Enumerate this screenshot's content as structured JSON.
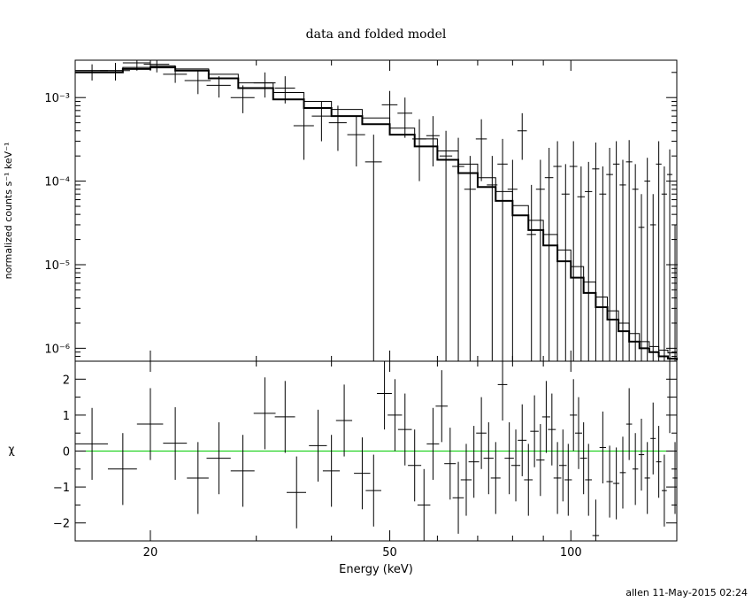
{
  "chart_data": [
    {
      "type": "scatter",
      "panel": "spectrum",
      "title": "data and folded model",
      "xlabel": "",
      "ylabel": "normalized counts s⁻¹ keV⁻¹",
      "xscale": "log",
      "yscale": "log",
      "xlim": [
        15,
        150
      ],
      "ylim": [
        7e-07,
        0.0028
      ],
      "y_tick_labels": [
        "10⁻³",
        "10⁻⁴",
        "10⁻⁵",
        "10⁻⁶"
      ],
      "y_ticks": [
        0.001,
        0.0001,
        1e-05,
        1e-06
      ],
      "series": [
        {
          "kind": "data-crosses",
          "x": [
            16,
            17.5,
            19,
            20.5,
            22,
            24,
            26,
            28.5,
            31,
            33.5,
            36,
            38.5,
            41,
            44,
            47,
            50,
            53,
            56,
            59,
            62,
            65,
            68,
            71,
            74,
            77,
            80,
            83,
            86,
            89,
            92,
            95,
            98,
            101,
            104,
            107,
            110,
            113,
            116,
            119,
            122,
            125,
            128,
            131,
            134,
            137,
            140,
            143,
            146,
            149
          ],
          "xerr": [
            1,
            1,
            1,
            1,
            1,
            1.2,
            1.2,
            1.3,
            1.3,
            1.3,
            1.4,
            1.4,
            1.4,
            1.5,
            1.5,
            1.5,
            1.5,
            1.5,
            1.5,
            1.5,
            1.5,
            1.5,
            1.5,
            1.5,
            1.5,
            1.5,
            1.5,
            1.5,
            1.5,
            1.5,
            1.5,
            1.5,
            1.5,
            1.5,
            1.5,
            1.5,
            1.5,
            1.5,
            1.5,
            1.5,
            1.5,
            1.5,
            1.5,
            1.5,
            1.5,
            1.5,
            1.5,
            1.5,
            1.5
          ],
          "y": [
            0.0021,
            0.0021,
            0.0026,
            0.0025,
            0.0019,
            0.0016,
            0.0014,
            0.001,
            0.0015,
            0.0013,
            0.00046,
            0.0006,
            0.0005,
            0.00036,
            0.00017,
            0.00082,
            0.00065,
            0.00032,
            0.00035,
            0.0002,
            0.00015,
            8e-05,
            0.00032,
            9e-05,
            0.00016,
            8e-05,
            0.0004,
            2.3e-05,
            8e-05,
            0.00011,
            0.00015,
            7e-05,
            0.00015,
            6.5e-05,
            7.5e-05,
            0.00014,
            7e-05,
            0.00012,
            0.00016,
            9e-05,
            0.00017,
            8e-05,
            2.8e-05,
            0.0001,
            3e-05,
            0.00016,
            7e-05,
            0.00012,
            1e-05
          ],
          "ylo": [
            0.0016,
            0.0016,
            0.0021,
            0.002,
            0.0015,
            0.0011,
            0.001,
            0.00065,
            0.001,
            0.00085,
            0.00018,
            0.0003,
            0.00023,
            0.00015,
            5e-07,
            0.00045,
            0.00033,
            0.0001,
            0.00015,
            5e-07,
            5e-07,
            5e-07,
            0.0001,
            5e-07,
            5e-07,
            5e-07,
            0.00018,
            5e-07,
            5e-07,
            5e-07,
            5e-07,
            5e-07,
            5e-07,
            5e-07,
            5e-07,
            5e-07,
            5e-07,
            5e-07,
            5e-07,
            5e-07,
            5e-07,
            5e-07,
            5e-07,
            5e-07,
            5e-07,
            5e-07,
            5e-07,
            5e-07,
            5e-07
          ],
          "yhi": [
            0.0025,
            0.0026,
            0.0028,
            0.0028,
            0.0024,
            0.0021,
            0.0018,
            0.0014,
            0.002,
            0.0018,
            0.00075,
            0.0009,
            0.0008,
            0.0006,
            0.00036,
            0.0012,
            0.001,
            0.00055,
            0.0006,
            0.0004,
            0.00033,
            0.0002,
            0.00055,
            0.0002,
            0.00032,
            0.00018,
            0.00065,
            9e-05,
            0.00018,
            0.00025,
            0.0003,
            0.00016,
            0.0003,
            0.00015,
            0.00017,
            0.00029,
            0.00015,
            0.00025,
            0.0003,
            0.00018,
            0.00031,
            0.00016,
            7e-05,
            0.00019,
            7e-05,
            0.0003,
            0.00015,
            0.00024,
            3e-05
          ]
        },
        {
          "kind": "model-thick",
          "x": [
            15,
            18,
            20,
            22,
            25,
            28,
            32,
            36,
            40,
            45,
            50,
            55,
            60,
            65,
            70,
            75,
            80,
            85,
            90,
            95,
            100,
            105,
            110,
            115,
            120,
            125,
            130,
            135,
            140,
            145,
            150
          ],
          "y": [
            0.002,
            0.0022,
            0.0023,
            0.0021,
            0.0017,
            0.0013,
            0.00095,
            0.00075,
            0.0006,
            0.00048,
            0.00036,
            0.00026,
            0.00018,
            0.000125,
            8.5e-05,
            5.8e-05,
            3.9e-05,
            2.6e-05,
            1.7e-05,
            1.1e-05,
            7e-06,
            4.6e-06,
            3.1e-06,
            2.2e-06,
            1.6e-06,
            1.2e-06,
            1e-06,
            9e-07,
            8e-07,
            7.5e-07,
            7.2e-07
          ]
        },
        {
          "kind": "model-thin",
          "x": [
            15,
            18,
            20,
            22,
            25,
            28,
            32,
            36,
            40,
            45,
            50,
            55,
            60,
            65,
            70,
            75,
            80,
            85,
            90,
            95,
            100,
            105,
            110,
            115,
            120,
            125,
            130,
            135,
            140,
            145,
            150
          ],
          "y": [
            0.0021,
            0.0023,
            0.0024,
            0.0022,
            0.0019,
            0.0015,
            0.00115,
            0.0009,
            0.00072,
            0.00057,
            0.00043,
            0.00032,
            0.00023,
            0.00016,
            0.00011,
            7.5e-05,
            5.1e-05,
            3.4e-05,
            2.3e-05,
            1.5e-05,
            9.5e-06,
            6.2e-06,
            4.1e-06,
            2.8e-06,
            2e-06,
            1.5e-06,
            1.2e-06,
            1.05e-06,
            9.5e-07,
            8.8e-07,
            8.3e-07
          ]
        }
      ]
    },
    {
      "type": "scatter",
      "panel": "residuals",
      "xlabel": "Energy (keV)",
      "ylabel": "χ",
      "xscale": "log",
      "xlim": [
        15,
        150
      ],
      "ylim": [
        -2.5,
        2.5
      ],
      "x_tick_labels": [
        "20",
        "50",
        "100"
      ],
      "x_ticks": [
        20,
        50,
        100
      ],
      "y_tick_labels": [
        "2",
        "1",
        "0",
        "−1",
        "−2"
      ],
      "y_ticks": [
        2,
        1,
        0,
        -1,
        -2
      ],
      "zero_line_color": "#00cc00",
      "series": [
        {
          "kind": "residual-crosses",
          "x": [
            16,
            18,
            20,
            22,
            24,
            26,
            28.5,
            31,
            33.5,
            35,
            38,
            40,
            42,
            45,
            47,
            49,
            51,
            53,
            55,
            57,
            59,
            61,
            63,
            65,
            67,
            69,
            71,
            73,
            75,
            77,
            79,
            81,
            83,
            85,
            87,
            89,
            91,
            93,
            95,
            97,
            99,
            101,
            103,
            105,
            107,
            110,
            113,
            116,
            119,
            122,
            125,
            128,
            131,
            134,
            137,
            140,
            143,
            146,
            149
          ],
          "xerr": [
            1,
            1,
            1,
            1,
            1,
            1.2,
            1.3,
            1.3,
            1.3,
            1.3,
            1.3,
            1.3,
            1.3,
            1.4,
            1.4,
            1.4,
            1.4,
            1.4,
            1.4,
            1.4,
            1.4,
            1.4,
            1.4,
            1.4,
            1.4,
            1.4,
            1.4,
            1.4,
            1.4,
            1.4,
            1.4,
            1.4,
            1.4,
            1.4,
            1.4,
            1.4,
            1.4,
            1.4,
            1.4,
            1.4,
            1.4,
            1.4,
            1.4,
            1.4,
            1.4,
            1.4,
            1.4,
            1.4,
            1.4,
            1.4,
            1.4,
            1.4,
            1.4,
            1.4,
            1.4,
            1.4,
            1.4,
            1.4,
            1.4
          ],
          "y": [
            0.2,
            -0.5,
            0.75,
            0.22,
            -0.75,
            -0.2,
            -0.55,
            1.05,
            0.95,
            -1.15,
            0.15,
            -0.55,
            0.85,
            -0.62,
            -1.1,
            1.6,
            1.0,
            0.6,
            -0.4,
            -1.5,
            0.2,
            1.25,
            -0.35,
            -1.3,
            -0.8,
            -0.3,
            0.5,
            -0.2,
            -0.75,
            1.85,
            -0.2,
            -0.4,
            0.3,
            -0.8,
            0.55,
            -0.25,
            0.95,
            0.6,
            -0.75,
            -0.4,
            -0.8,
            1.0,
            0.5,
            -0.2,
            -0.8,
            -2.35,
            0.1,
            -0.85,
            -0.9,
            -0.6,
            0.75,
            -0.5,
            -0.1,
            -0.75,
            0.35,
            -0.3,
            -1.1,
            1.5,
            -0.75
          ],
          "ylo": [
            -0.8,
            -1.5,
            -0.25,
            -0.8,
            -1.75,
            -1.2,
            -1.55,
            0.05,
            -0.05,
            -2.15,
            -0.85,
            -1.55,
            -0.15,
            -1.62,
            -2.1,
            0.6,
            0.0,
            -0.4,
            -1.4,
            -2.5,
            -0.8,
            0.25,
            -1.35,
            -2.3,
            -1.8,
            -1.3,
            -0.5,
            -1.2,
            -1.75,
            0.85,
            -1.2,
            -1.4,
            -0.7,
            -1.8,
            -0.45,
            -1.25,
            -0.05,
            -0.4,
            -1.75,
            -1.4,
            -1.8,
            0.0,
            -0.5,
            -1.2,
            -1.8,
            -2.5,
            -0.9,
            -1.85,
            -1.9,
            -1.6,
            -0.25,
            -1.5,
            -1.1,
            -1.75,
            -0.65,
            -1.3,
            -2.1,
            0.5,
            -1.75
          ],
          "yhi": [
            1.2,
            0.5,
            1.75,
            1.22,
            0.25,
            0.8,
            0.45,
            2.05,
            1.95,
            -0.15,
            1.15,
            0.45,
            1.85,
            0.38,
            -0.1,
            2.5,
            2.0,
            1.6,
            0.6,
            -0.5,
            1.2,
            2.25,
            0.65,
            -0.3,
            0.2,
            0.7,
            1.5,
            0.8,
            0.25,
            2.5,
            0.8,
            0.6,
            1.3,
            0.2,
            1.55,
            0.75,
            1.95,
            1.6,
            0.25,
            0.6,
            0.2,
            2.0,
            1.5,
            0.8,
            0.2,
            -1.35,
            1.1,
            0.15,
            0.1,
            0.4,
            1.75,
            0.5,
            0.9,
            0.25,
            1.35,
            0.7,
            -0.1,
            2.5,
            0.25
          ]
        }
      ]
    }
  ],
  "footer": {
    "credit": "allen 11-May-2015 02:24"
  }
}
